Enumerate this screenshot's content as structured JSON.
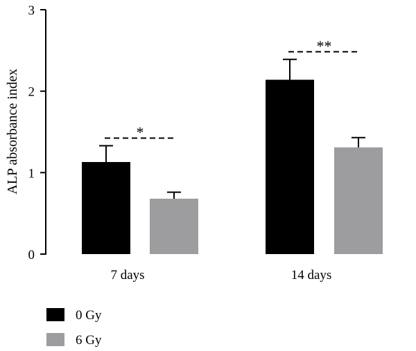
{
  "chart_data": {
    "type": "bar",
    "title": "",
    "xlabel": "",
    "ylabel": "ALP absorbance index",
    "ylim": [
      0,
      3
    ],
    "yticks": [
      0,
      1,
      2,
      3
    ],
    "categories": [
      "7 days",
      "14 days"
    ],
    "series": [
      {
        "name": "0 Gy",
        "color": "#000000",
        "values": [
          1.13,
          2.14
        ],
        "errors": [
          0.2,
          0.25
        ]
      },
      {
        "name": "6 Gy",
        "color": "#9d9d9f",
        "values": [
          0.68,
          1.31
        ],
        "errors": [
          0.08,
          0.12
        ]
      }
    ],
    "significance": [
      {
        "category": "7 days",
        "label": "*"
      },
      {
        "category": "14 days",
        "label": "**"
      }
    ],
    "legend_position": "bottom-left",
    "grid": false
  }
}
